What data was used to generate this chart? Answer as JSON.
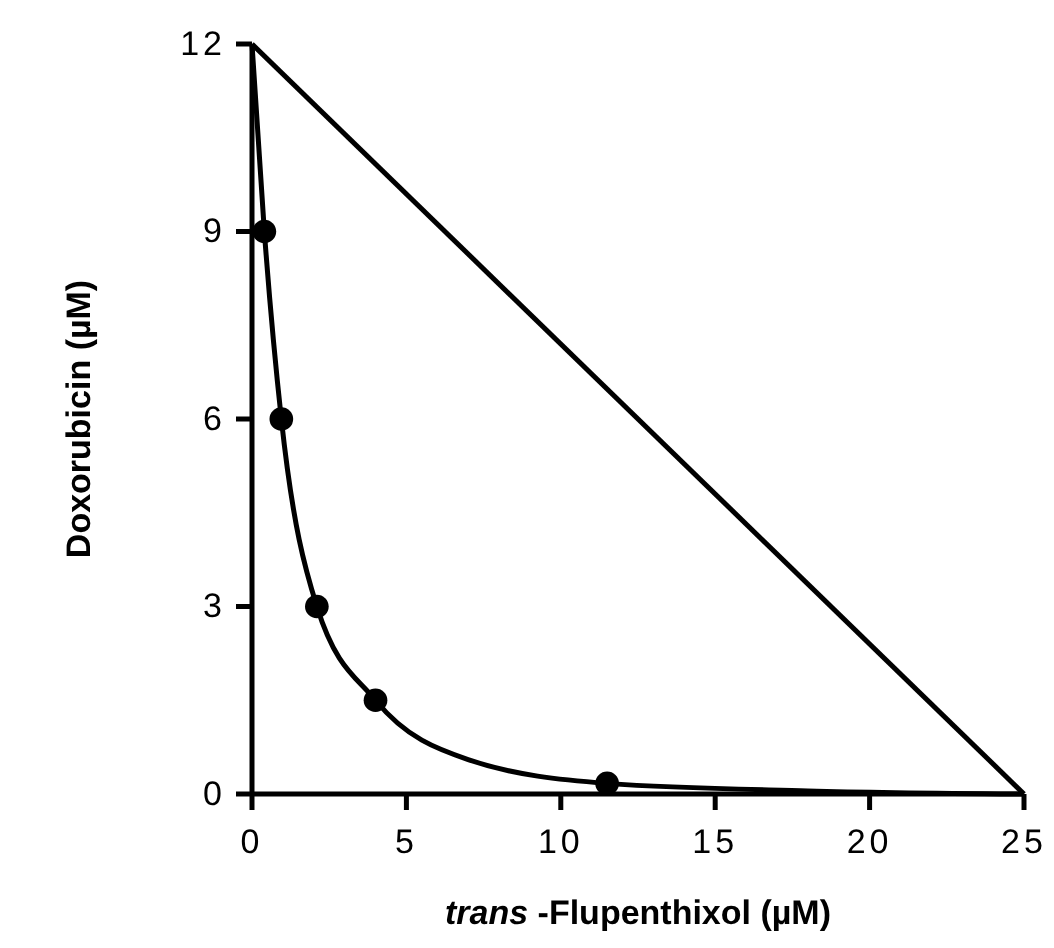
{
  "chart_data": {
    "type": "scatter",
    "xlabel": "trans -Flupenthixol (µM)",
    "ylabel": "Doxorubicin  (µM)",
    "xlim": [
      0,
      25
    ],
    "ylim": [
      0,
      12
    ],
    "xticks": [
      0,
      5,
      10,
      15,
      20,
      25
    ],
    "yticks": [
      0,
      3,
      6,
      9,
      12
    ],
    "grid": false,
    "series": [
      {
        "type": "line",
        "color": "#000000",
        "marker": "none",
        "x": [
          0,
          25
        ],
        "values": [
          12,
          0
        ]
      },
      {
        "type": "line",
        "color": "#000000",
        "marker": "none",
        "x": [
          0,
          0.4,
          0.95,
          2.1,
          4,
          7,
          11.5,
          18,
          25
        ],
        "values": [
          12,
          9,
          6,
          3,
          1.5,
          0.55,
          0.17,
          0.05,
          0
        ]
      },
      {
        "color": "#000000",
        "marker": "circle",
        "x": [
          0.4,
          0.95,
          2.1,
          4,
          11.5
        ],
        "values": [
          9,
          6,
          3,
          1.5,
          0.17
        ]
      }
    ]
  }
}
